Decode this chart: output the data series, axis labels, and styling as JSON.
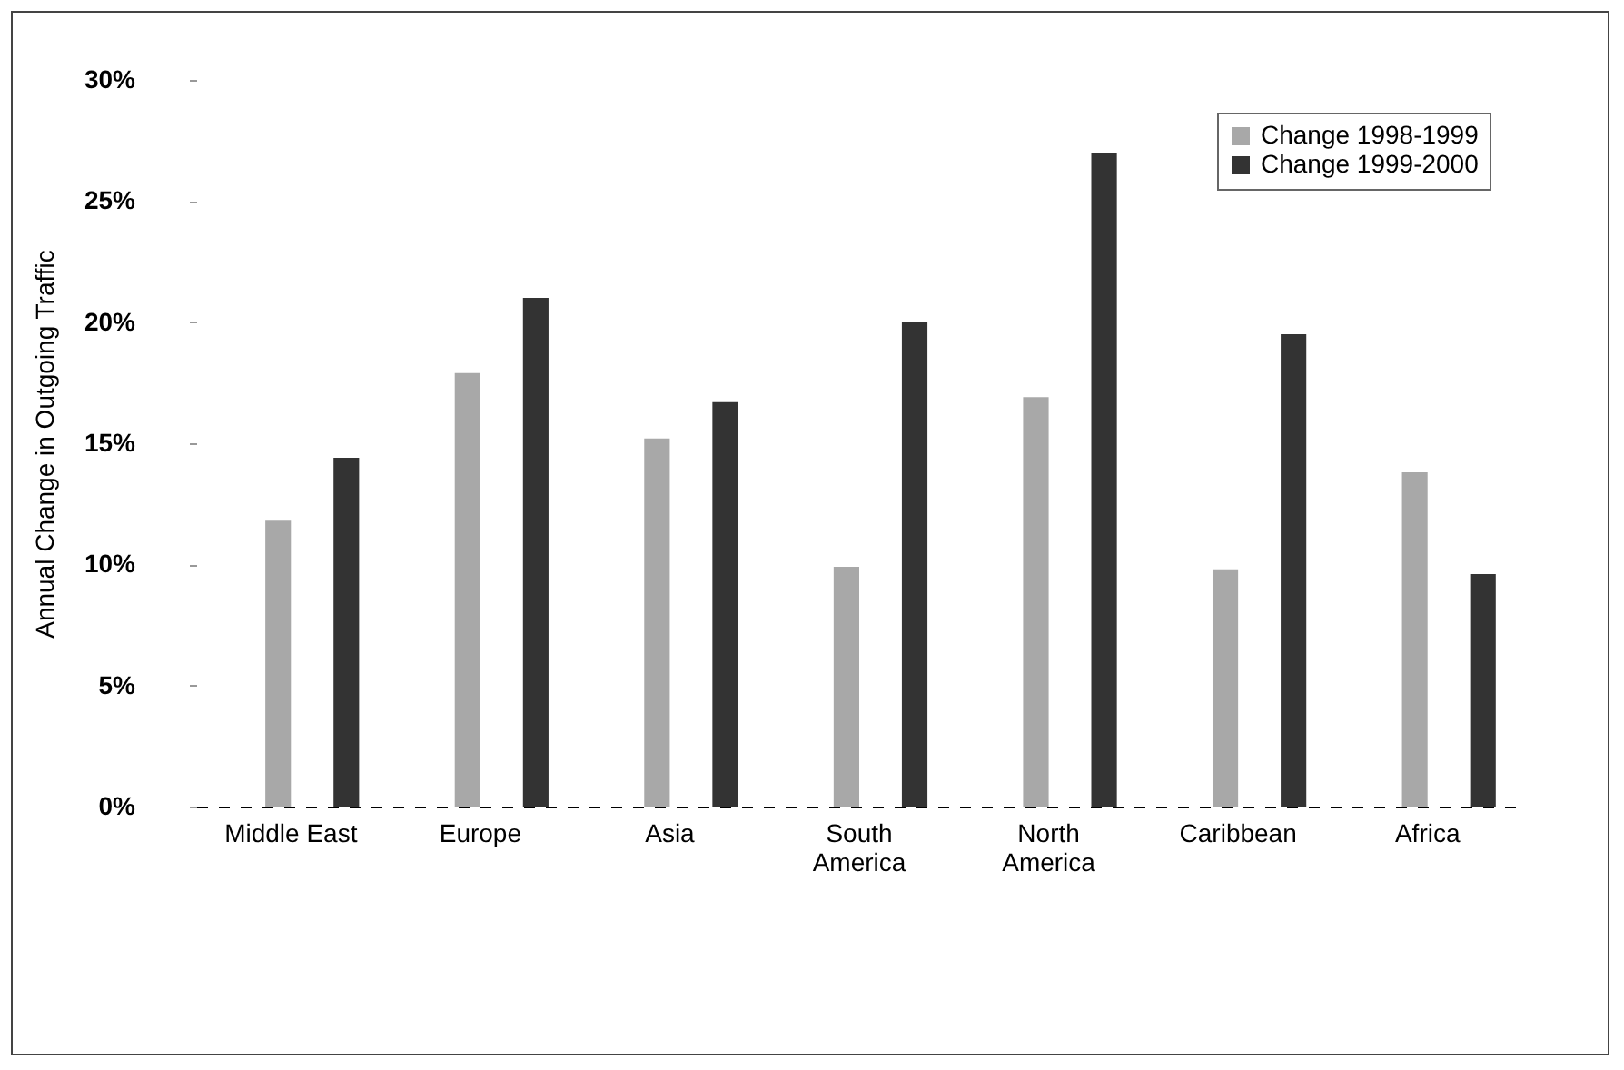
{
  "chart_data": {
    "type": "bar",
    "ylabel": "Annual Change in Outgoing Traffic",
    "categories": [
      "Middle East",
      "Europe",
      "Asia",
      "South\nAmerica",
      "North\nAmerica",
      "Caribbean",
      "Africa"
    ],
    "series": [
      {
        "name": "Change 1998-1999",
        "color": "#a8a8a8",
        "values": [
          11.8,
          17.9,
          15.2,
          9.9,
          16.9,
          9.8,
          13.8
        ]
      },
      {
        "name": "Change 1999-2000",
        "color": "#333333",
        "values": [
          14.4,
          21.0,
          16.7,
          20.0,
          27.0,
          19.5,
          9.6
        ]
      }
    ],
    "ylim": [
      0,
      30
    ],
    "yticks": [
      {
        "value": 0,
        "label": "0%"
      },
      {
        "value": 5,
        "label": "5%"
      },
      {
        "value": 10,
        "label": "10%"
      },
      {
        "value": 15,
        "label": "15%"
      },
      {
        "value": 20,
        "label": "20%"
      },
      {
        "value": 25,
        "label": "25%"
      },
      {
        "value": 30,
        "label": "30%"
      }
    ],
    "grid": false,
    "legend": "top right"
  }
}
